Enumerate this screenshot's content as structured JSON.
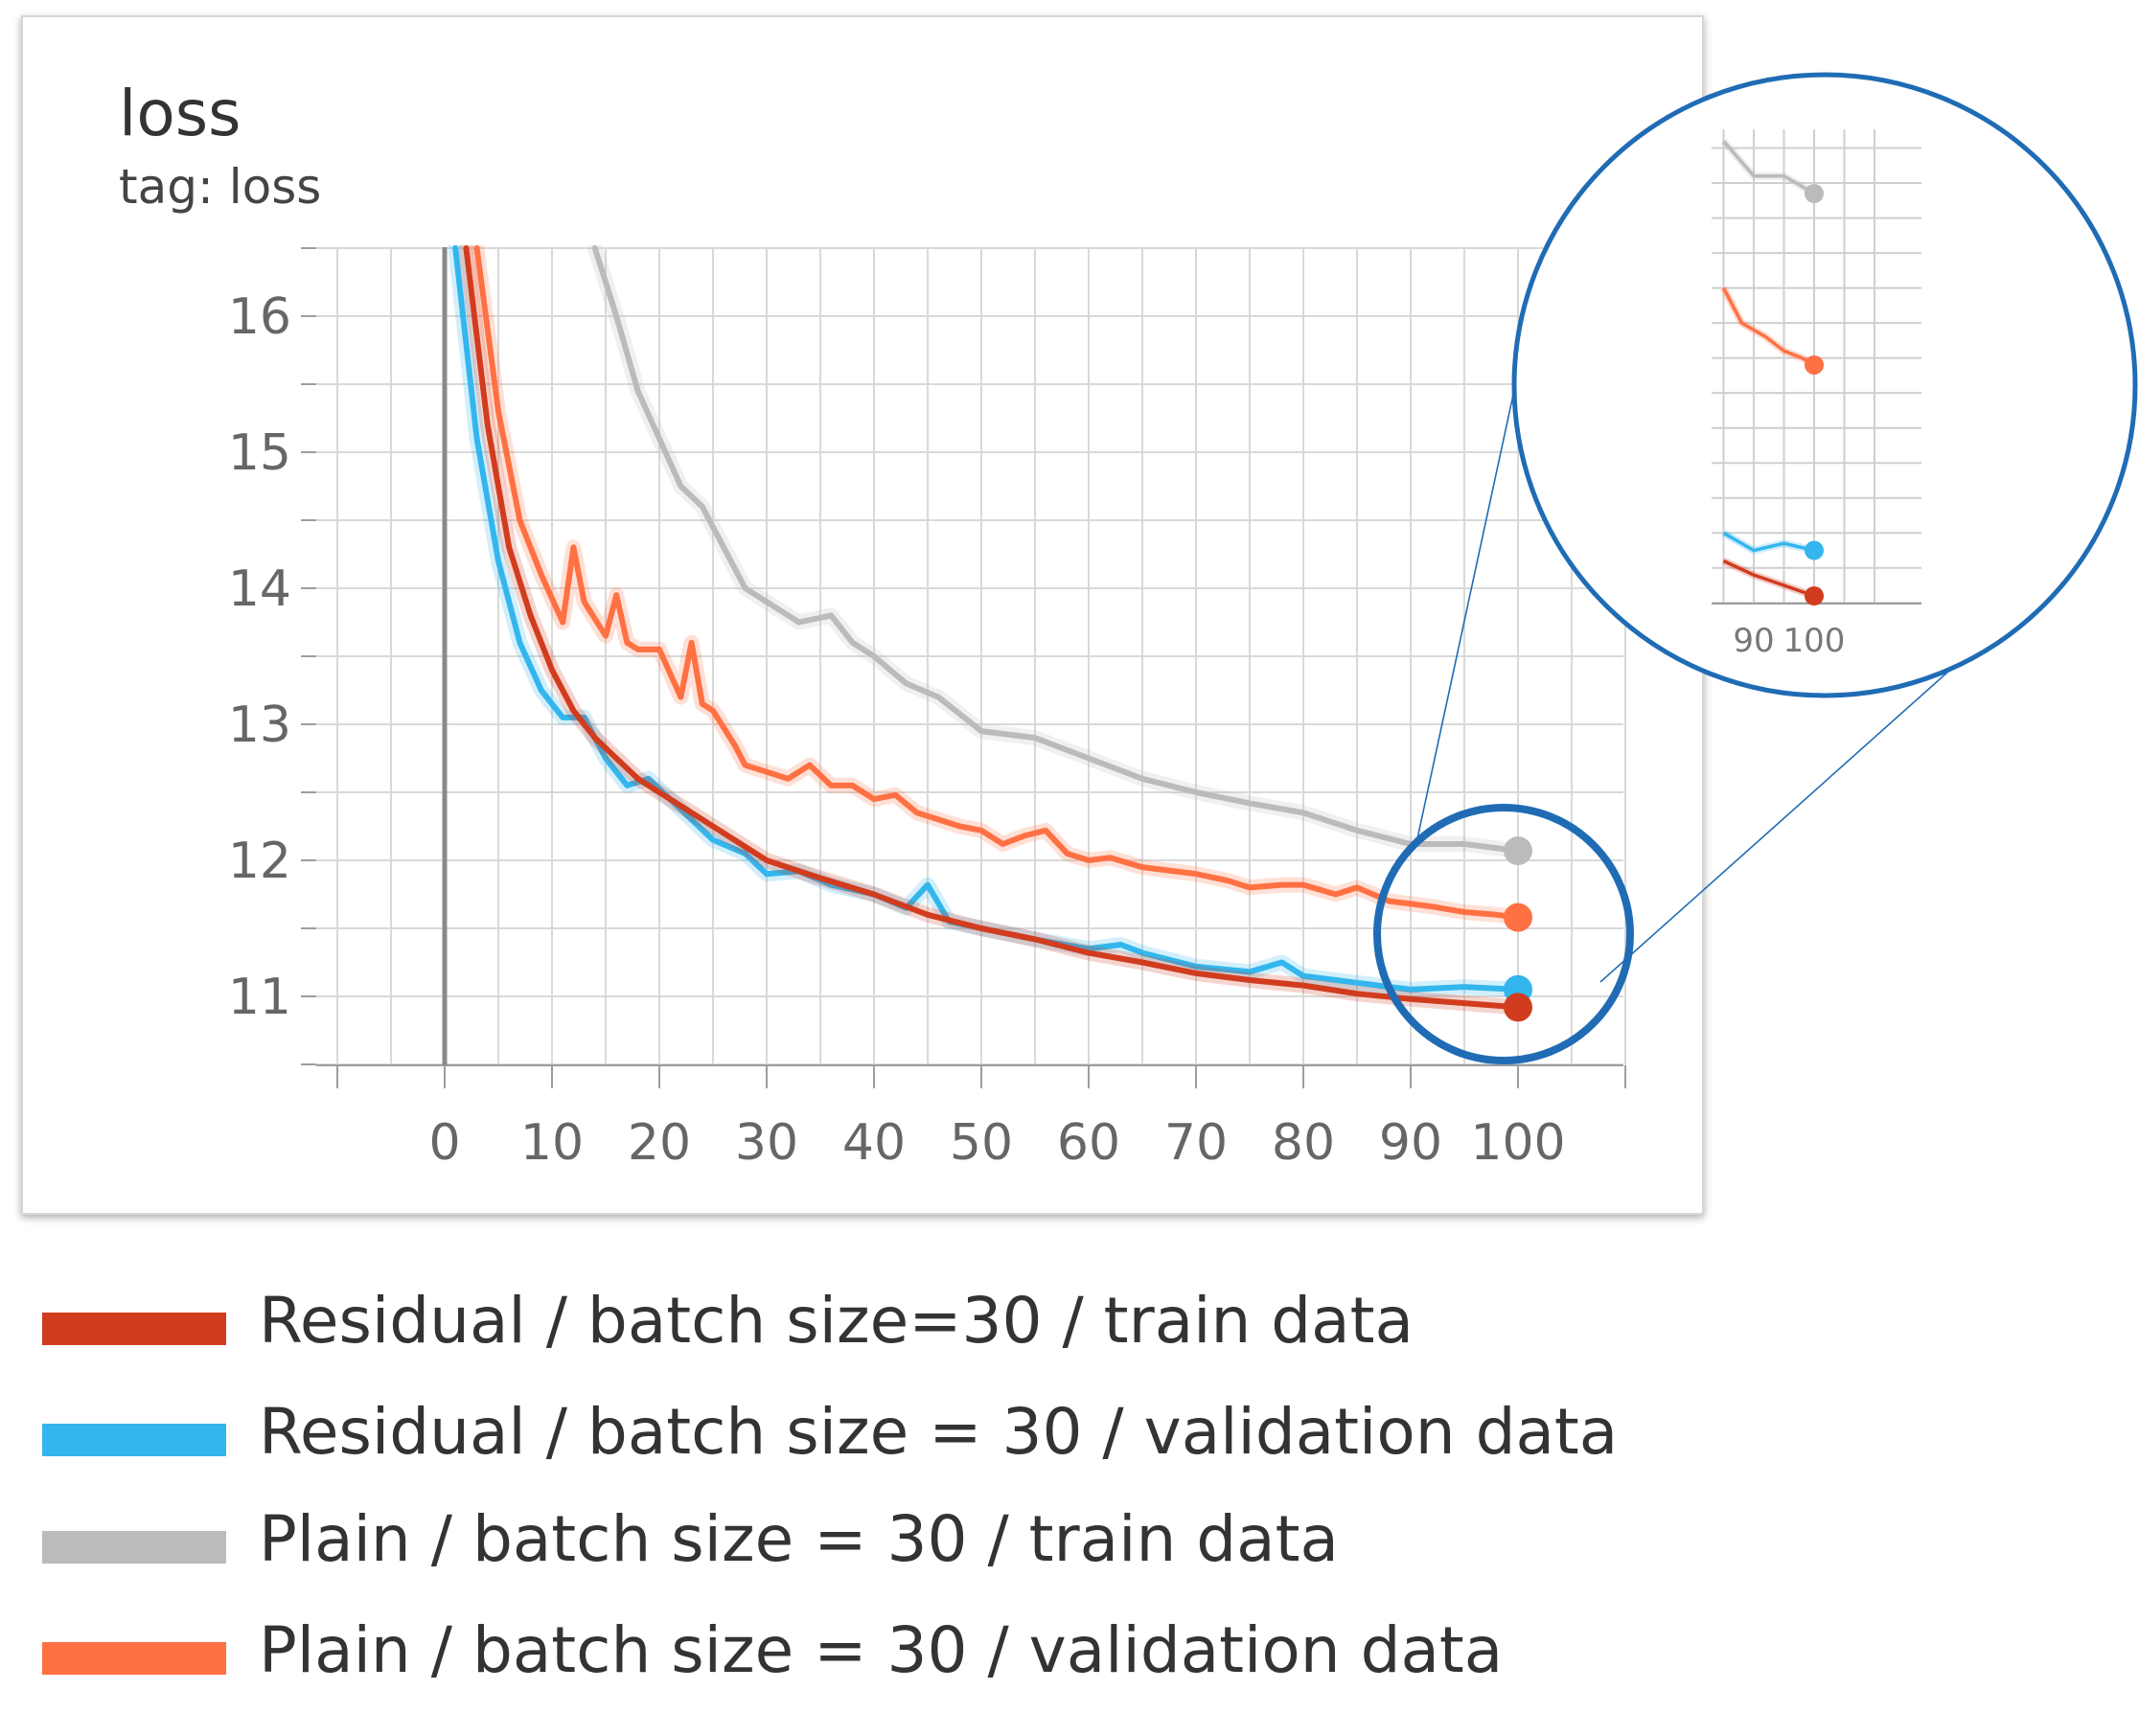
{
  "card": {
    "title": "loss",
    "tag": "tag: loss"
  },
  "chart_data": {
    "type": "line",
    "title": "loss",
    "subtitle": "tag: loss",
    "xlabel": "",
    "ylabel": "",
    "xlim": [
      -10,
      110
    ],
    "ylim": [
      10.5,
      16.5
    ],
    "x_ticks": [
      0,
      10,
      20,
      30,
      40,
      50,
      60,
      70,
      80,
      90,
      100
    ],
    "y_ticks": [
      11,
      12,
      13,
      14,
      15,
      16
    ],
    "grid": true,
    "legend_position": "bottom",
    "series": [
      {
        "name": "Residual / batch size=30 / train data",
        "color": "#d13c1e",
        "x": [
          2,
          4,
          6,
          8,
          10,
          12,
          14,
          16,
          18,
          20,
          22,
          25,
          28,
          30,
          35,
          40,
          45,
          50,
          55,
          60,
          65,
          70,
          75,
          80,
          85,
          90,
          95,
          100
        ],
        "values": [
          16.5,
          15.2,
          14.3,
          13.8,
          13.4,
          13.1,
          12.9,
          12.75,
          12.6,
          12.5,
          12.4,
          12.25,
          12.1,
          12.0,
          11.87,
          11.75,
          11.6,
          11.5,
          11.42,
          11.32,
          11.25,
          11.17,
          11.12,
          11.08,
          11.02,
          10.98,
          10.95,
          10.92
        ]
      },
      {
        "name": "Residual / batch size = 30 / validation data",
        "color": "#33b6ed",
        "x": [
          1,
          3,
          5,
          7,
          9,
          11,
          13,
          15,
          17,
          19,
          21,
          23,
          25,
          28,
          30,
          33,
          36,
          40,
          43,
          45,
          47,
          50,
          55,
          60,
          63,
          65,
          70,
          75,
          78,
          80,
          85,
          90,
          95,
          100
        ],
        "values": [
          16.5,
          15.1,
          14.2,
          13.6,
          13.25,
          13.05,
          13.05,
          12.75,
          12.55,
          12.6,
          12.45,
          12.3,
          12.15,
          12.05,
          11.9,
          11.92,
          11.82,
          11.75,
          11.65,
          11.82,
          11.55,
          11.5,
          11.42,
          11.35,
          11.38,
          11.32,
          11.22,
          11.18,
          11.25,
          11.15,
          11.1,
          11.05,
          11.07,
          11.05
        ]
      },
      {
        "name": "Plain / batch size = 30 / train data",
        "color": "#bbbbbb",
        "x": [
          14,
          16,
          18,
          20,
          22,
          24,
          26,
          28,
          30,
          33,
          36,
          38,
          40,
          43,
          46,
          50,
          55,
          60,
          65,
          70,
          75,
          80,
          85,
          90,
          95,
          100
        ],
        "values": [
          16.5,
          16.0,
          15.45,
          15.1,
          14.75,
          14.6,
          14.3,
          14.0,
          13.9,
          13.75,
          13.8,
          13.6,
          13.5,
          13.3,
          13.2,
          12.95,
          12.9,
          12.75,
          12.6,
          12.5,
          12.42,
          12.35,
          12.22,
          12.12,
          12.12,
          12.07
        ]
      },
      {
        "name": "Plain / batch size = 30 / validation data",
        "color": "#ff7043",
        "x": [
          3,
          5,
          7,
          9,
          11,
          12,
          13,
          15,
          16,
          17,
          18,
          20,
          22,
          23,
          24,
          25,
          27,
          28,
          30,
          32,
          34,
          36,
          38,
          40,
          42,
          44,
          46,
          48,
          50,
          52,
          54,
          56,
          58,
          60,
          62,
          65,
          68,
          70,
          73,
          75,
          78,
          80,
          83,
          85,
          88,
          90,
          92,
          95,
          98,
          100
        ],
        "values": [
          16.5,
          15.3,
          14.5,
          14.1,
          13.75,
          14.3,
          13.9,
          13.65,
          13.95,
          13.6,
          13.55,
          13.55,
          13.2,
          13.6,
          13.15,
          13.1,
          12.85,
          12.7,
          12.65,
          12.6,
          12.7,
          12.55,
          12.55,
          12.45,
          12.48,
          12.35,
          12.3,
          12.25,
          12.22,
          12.12,
          12.18,
          12.22,
          12.05,
          12.0,
          12.02,
          11.95,
          11.92,
          11.9,
          11.85,
          11.8,
          11.82,
          11.82,
          11.75,
          11.8,
          11.7,
          11.68,
          11.66,
          11.62,
          11.6,
          11.58
        ]
      }
    ]
  },
  "legend": {
    "items": [
      {
        "label": "Residual / batch size=30 / train data",
        "color": "#d13c1e"
      },
      {
        "label": "Residual / batch size = 30 / validation data",
        "color": "#33b6ed"
      },
      {
        "label": "Plain / batch size = 30 / train data",
        "color": "#bbbbbb"
      },
      {
        "label": "Plain / batch size = 30 / validation data",
        "color": "#ff7043"
      }
    ]
  },
  "zoom": {
    "callout_color": "#1f6cb5",
    "x_ticks": [
      90,
      100
    ],
    "ylim": [
      10.8,
      12.4
    ]
  }
}
